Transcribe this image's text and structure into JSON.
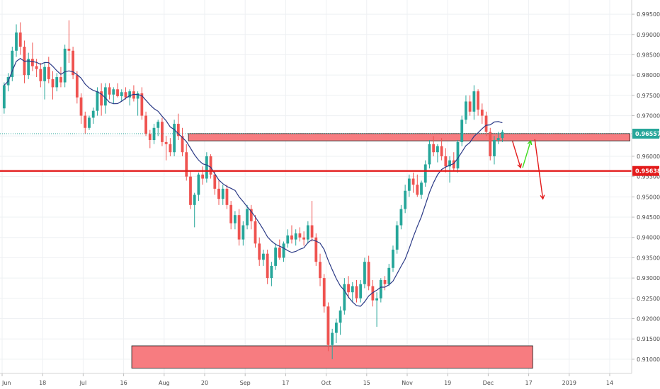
{
  "chart_data": {
    "type": "candlestick",
    "instrument_timeframe": "daily",
    "price_scale": {
      "ylim": [
        0.9065,
        0.9985
      ],
      "ticks": [
        0.995,
        0.99,
        0.985,
        0.98,
        0.975,
        0.97,
        0.965,
        0.96,
        0.955,
        0.95,
        0.945,
        0.94,
        0.935,
        0.93,
        0.925,
        0.92,
        0.915,
        0.91
      ],
      "tick_labels": [
        "0.99500",
        "0.99000",
        "0.98500",
        "0.98000",
        "0.97500",
        "0.97000",
        "0.96500",
        "0.96000",
        "0.95500",
        "0.95000",
        "0.94500",
        "0.94000",
        "0.93500",
        "0.93000",
        "0.92500",
        "0.92000",
        "0.91500",
        "0.91000"
      ]
    },
    "time_scale": {
      "labels": [
        "Jun",
        "18",
        "Jul",
        "16",
        "Aug",
        "20",
        "Sep",
        "17",
        "Oct",
        "15",
        "Nov",
        "19",
        "Dec",
        "17",
        "2019",
        "14"
      ],
      "label_bar_index": [
        0,
        10,
        20,
        30,
        40,
        50,
        60,
        70,
        80,
        90,
        100,
        110,
        120,
        130,
        140,
        150
      ]
    },
    "current_price": {
      "value": 0.96557,
      "label": "0.96557",
      "color": "#26a69a"
    },
    "support_line": {
      "value": 0.95638,
      "label": "0.95638",
      "color": "#e31b1b"
    },
    "zones": [
      {
        "from_bar": 46,
        "to_bar": 155,
        "low": 0.9638,
        "high": 0.9656,
        "color": "#f77c80"
      },
      {
        "from_bar": 32,
        "to_bar": 131,
        "low": 0.9078,
        "high": 0.9133,
        "color": "#f77c80"
      }
    ],
    "moving_average": {
      "color": "#2b3a86"
    },
    "arrows": [
      {
        "from_bar": 126,
        "from_price": 0.9637,
        "to_bar": 128,
        "to_price": 0.9572,
        "color": "#e31b1b"
      },
      {
        "from_bar": 128.5,
        "from_price": 0.9572,
        "to_bar": 130.5,
        "to_price": 0.9638,
        "color": "#3ddb1c"
      },
      {
        "from_bar": 131.5,
        "from_price": 0.9642,
        "to_bar": 133.5,
        "to_price": 0.9495,
        "color": "#e31b1b"
      }
    ],
    "colors": {
      "up": "#26a69a",
      "down": "#ef5350"
    },
    "ohlc": [
      [
        0.9718,
        0.9782,
        0.9705,
        0.9775
      ],
      [
        0.9775,
        0.9805,
        0.976,
        0.9795
      ],
      [
        0.9795,
        0.987,
        0.9785,
        0.986
      ],
      [
        0.986,
        0.9925,
        0.9845,
        0.9905
      ],
      [
        0.9905,
        0.993,
        0.985,
        0.987
      ],
      [
        0.987,
        0.9885,
        0.978,
        0.98
      ],
      [
        0.98,
        0.9855,
        0.979,
        0.984
      ],
      [
        0.984,
        0.988,
        0.981,
        0.9822
      ],
      [
        0.9822,
        0.984,
        0.9795,
        0.9815
      ],
      [
        0.9815,
        0.983,
        0.977,
        0.9785
      ],
      [
        0.9785,
        0.983,
        0.974,
        0.982
      ],
      [
        0.982,
        0.9845,
        0.978,
        0.979
      ],
      [
        0.979,
        0.981,
        0.974,
        0.977
      ],
      [
        0.977,
        0.9805,
        0.976,
        0.9795
      ],
      [
        0.9795,
        0.982,
        0.977,
        0.9782
      ],
      [
        0.9782,
        0.9875,
        0.977,
        0.9865
      ],
      [
        0.9865,
        0.9935,
        0.983,
        0.986
      ],
      [
        0.986,
        0.987,
        0.979,
        0.98
      ],
      [
        0.98,
        0.981,
        0.973,
        0.9745
      ],
      [
        0.9745,
        0.9755,
        0.968,
        0.97
      ],
      [
        0.97,
        0.971,
        0.9655,
        0.967
      ],
      [
        0.967,
        0.97,
        0.9665,
        0.9695
      ],
      [
        0.9695,
        0.972,
        0.968,
        0.9712
      ],
      [
        0.9712,
        0.977,
        0.97,
        0.976
      ],
      [
        0.976,
        0.978,
        0.97,
        0.9725
      ],
      [
        0.9725,
        0.978,
        0.9705,
        0.977
      ],
      [
        0.977,
        0.978,
        0.974,
        0.9752
      ],
      [
        0.9752,
        0.977,
        0.973,
        0.9765
      ],
      [
        0.9765,
        0.978,
        0.9745,
        0.9748
      ],
      [
        0.9748,
        0.9765,
        0.9735,
        0.9758
      ],
      [
        0.9758,
        0.977,
        0.974,
        0.9745
      ],
      [
        0.9745,
        0.9765,
        0.9725,
        0.976
      ],
      [
        0.976,
        0.9775,
        0.9735,
        0.9742
      ],
      [
        0.9742,
        0.976,
        0.97,
        0.9755
      ],
      [
        0.9755,
        0.977,
        0.969,
        0.97
      ],
      [
        0.97,
        0.971,
        0.965,
        0.9655
      ],
      [
        0.9655,
        0.9665,
        0.962,
        0.964
      ],
      [
        0.964,
        0.968,
        0.963,
        0.967
      ],
      [
        0.967,
        0.969,
        0.965,
        0.9685
      ],
      [
        0.9685,
        0.9695,
        0.9625,
        0.9635
      ],
      [
        0.9635,
        0.965,
        0.959,
        0.963
      ],
      [
        0.963,
        0.9645,
        0.96,
        0.961
      ],
      [
        0.961,
        0.969,
        0.96,
        0.968
      ],
      [
        0.968,
        0.9705,
        0.964,
        0.965
      ],
      [
        0.965,
        0.967,
        0.96,
        0.961
      ],
      [
        0.961,
        0.963,
        0.954,
        0.955
      ],
      [
        0.955,
        0.9565,
        0.947,
        0.948
      ],
      [
        0.948,
        0.951,
        0.9425,
        0.9505
      ],
      [
        0.9505,
        0.956,
        0.949,
        0.9555
      ],
      [
        0.9555,
        0.9575,
        0.953,
        0.9545
      ],
      [
        0.9545,
        0.961,
        0.9535,
        0.96
      ],
      [
        0.96,
        0.9605,
        0.9545,
        0.9555
      ],
      [
        0.9555,
        0.9565,
        0.9505,
        0.952
      ],
      [
        0.952,
        0.954,
        0.948,
        0.9495
      ],
      [
        0.9495,
        0.953,
        0.948,
        0.952
      ],
      [
        0.952,
        0.953,
        0.947,
        0.948
      ],
      [
        0.948,
        0.949,
        0.942,
        0.9435
      ],
      [
        0.9435,
        0.9465,
        0.942,
        0.9455
      ],
      [
        0.9455,
        0.947,
        0.938,
        0.9395
      ],
      [
        0.9395,
        0.944,
        0.938,
        0.943
      ],
      [
        0.943,
        0.948,
        0.942,
        0.947
      ],
      [
        0.947,
        0.948,
        0.942,
        0.944
      ],
      [
        0.944,
        0.9455,
        0.9375,
        0.9385
      ],
      [
        0.9385,
        0.94,
        0.933,
        0.9345
      ],
      [
        0.9345,
        0.937,
        0.933,
        0.936
      ],
      [
        0.936,
        0.937,
        0.9285,
        0.93
      ],
      [
        0.93,
        0.934,
        0.928,
        0.933
      ],
      [
        0.933,
        0.9385,
        0.932,
        0.9375
      ],
      [
        0.9375,
        0.9395,
        0.9345,
        0.935
      ],
      [
        0.935,
        0.939,
        0.934,
        0.9385
      ],
      [
        0.9385,
        0.942,
        0.9375,
        0.9405
      ],
      [
        0.9405,
        0.943,
        0.9385,
        0.9395
      ],
      [
        0.9395,
        0.942,
        0.938,
        0.941
      ],
      [
        0.941,
        0.9425,
        0.939,
        0.94
      ],
      [
        0.94,
        0.9415,
        0.938,
        0.9395
      ],
      [
        0.9395,
        0.944,
        0.9385,
        0.943
      ],
      [
        0.943,
        0.949,
        0.939,
        0.94
      ],
      [
        0.94,
        0.941,
        0.933,
        0.934
      ],
      [
        0.934,
        0.936,
        0.928,
        0.93
      ],
      [
        0.93,
        0.931,
        0.9215,
        0.923
      ],
      [
        0.923,
        0.924,
        0.912,
        0.9135
      ],
      [
        0.9135,
        0.9175,
        0.91,
        0.9165
      ],
      [
        0.9165,
        0.92,
        0.914,
        0.919
      ],
      [
        0.919,
        0.923,
        0.916,
        0.922
      ],
      [
        0.922,
        0.93,
        0.921,
        0.9285
      ],
      [
        0.9285,
        0.9305,
        0.925,
        0.9265
      ],
      [
        0.9265,
        0.929,
        0.924,
        0.928
      ],
      [
        0.928,
        0.9295,
        0.924,
        0.925
      ],
      [
        0.925,
        0.9295,
        0.924,
        0.9285
      ],
      [
        0.9285,
        0.935,
        0.9275,
        0.934
      ],
      [
        0.934,
        0.9355,
        0.927,
        0.928
      ],
      [
        0.928,
        0.9295,
        0.923,
        0.9245
      ],
      [
        0.9245,
        0.9265,
        0.918,
        0.925
      ],
      [
        0.925,
        0.93,
        0.924,
        0.9295
      ],
      [
        0.9295,
        0.9305,
        0.927,
        0.9285
      ],
      [
        0.9285,
        0.9335,
        0.928,
        0.9325
      ],
      [
        0.9325,
        0.938,
        0.9315,
        0.937
      ],
      [
        0.937,
        0.944,
        0.936,
        0.943
      ],
      [
        0.943,
        0.948,
        0.942,
        0.947
      ],
      [
        0.947,
        0.953,
        0.946,
        0.9515
      ],
      [
        0.9515,
        0.9555,
        0.95,
        0.9545
      ],
      [
        0.9545,
        0.956,
        0.951,
        0.953
      ],
      [
        0.953,
        0.9555,
        0.95,
        0.9505
      ],
      [
        0.9505,
        0.954,
        0.9495,
        0.9535
      ],
      [
        0.9535,
        0.959,
        0.9525,
        0.958
      ],
      [
        0.958,
        0.964,
        0.957,
        0.963
      ],
      [
        0.963,
        0.965,
        0.96,
        0.961
      ],
      [
        0.961,
        0.963,
        0.9585,
        0.9625
      ],
      [
        0.9625,
        0.9645,
        0.959,
        0.96
      ],
      [
        0.96,
        0.962,
        0.956,
        0.9575
      ],
      [
        0.9575,
        0.96,
        0.9535,
        0.959
      ],
      [
        0.959,
        0.961,
        0.9565,
        0.957
      ],
      [
        0.957,
        0.964,
        0.956,
        0.9635
      ],
      [
        0.9635,
        0.97,
        0.9625,
        0.969
      ],
      [
        0.969,
        0.975,
        0.968,
        0.9735
      ],
      [
        0.9735,
        0.975,
        0.97,
        0.971
      ],
      [
        0.971,
        0.9775,
        0.969,
        0.976
      ],
      [
        0.976,
        0.9765,
        0.97,
        0.9715
      ],
      [
        0.9715,
        0.973,
        0.968,
        0.97
      ],
      [
        0.97,
        0.971,
        0.965,
        0.966
      ],
      [
        0.966,
        0.967,
        0.959,
        0.96
      ],
      [
        0.96,
        0.965,
        0.958,
        0.964
      ],
      [
        0.964,
        0.966,
        0.963,
        0.9645
      ],
      [
        0.9645,
        0.9665,
        0.9635,
        0.966
      ]
    ]
  }
}
